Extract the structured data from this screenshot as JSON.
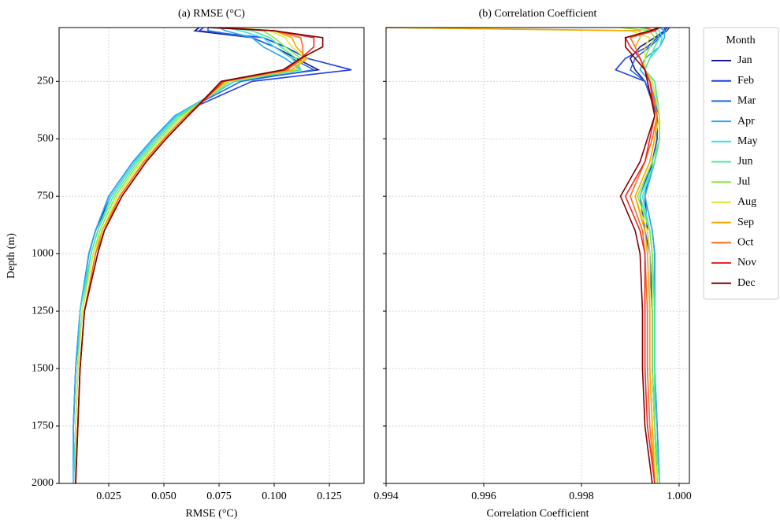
{
  "chart_data": [
    {
      "type": "line",
      "title": "(a) RMSE (°C)",
      "x_label": "RMSE (°C)",
      "y_label": "Depth (m)",
      "legend_title": "Month",
      "grid": true,
      "xlim": [
        0.0025,
        0.1407
      ],
      "ylim": [
        2000,
        16
      ],
      "xticks": [
        0.025,
        {
          "value": 0.05,
          "label": "0.050"
        },
        0.075,
        {
          "value": 0.1,
          "label": "0.100"
        },
        0.125
      ],
      "yticks": [
        250,
        500,
        750,
        1000,
        1250,
        1500,
        1750,
        2000
      ],
      "y": [
        16,
        30,
        60,
        100,
        150,
        200,
        250,
        400,
        500,
        600,
        750,
        900,
        1000,
        1250,
        1500,
        1750,
        2000
      ],
      "series": [
        {
          "name": "Jan",
          "color": "#1a1a8c",
          "values": [
            0.066,
            0.064,
            0.09,
            0.1,
            0.11,
            0.12,
            0.082,
            0.056,
            0.046,
            0.037,
            0.026,
            0.019,
            0.016,
            0.012,
            0.011,
            0.01,
            0.009
          ]
        },
        {
          "name": "Feb",
          "color": "#1f3fe0",
          "values": [
            0.068,
            0.066,
            0.095,
            0.105,
            0.115,
            0.135,
            0.09,
            0.055,
            0.045,
            0.036,
            0.025,
            0.019,
            0.016,
            0.012,
            0.01,
            0.009,
            0.009
          ]
        },
        {
          "name": "Mar",
          "color": "#1e6ae8",
          "values": [
            0.07,
            0.07,
            0.09,
            0.1,
            0.108,
            0.118,
            0.085,
            0.055,
            0.045,
            0.036,
            0.025,
            0.019,
            0.016,
            0.012,
            0.01,
            0.009,
            0.009
          ]
        },
        {
          "name": "Apr",
          "color": "#2ba8f0",
          "values": [
            0.075,
            0.078,
            0.09,
            0.095,
            0.105,
            0.112,
            0.082,
            0.055,
            0.045,
            0.036,
            0.025,
            0.019,
            0.016,
            0.012,
            0.01,
            0.009,
            0.009
          ]
        },
        {
          "name": "May",
          "color": "#3fe0e0",
          "values": [
            0.078,
            0.085,
            0.095,
            0.1,
            0.108,
            0.112,
            0.082,
            0.056,
            0.046,
            0.037,
            0.026,
            0.02,
            0.017,
            0.012,
            0.011,
            0.01,
            0.009
          ]
        },
        {
          "name": "Jun",
          "color": "#4be89a",
          "values": [
            0.08,
            0.09,
            0.098,
            0.103,
            0.11,
            0.112,
            0.08,
            0.057,
            0.047,
            0.038,
            0.027,
            0.02,
            0.017,
            0.013,
            0.011,
            0.01,
            0.01
          ]
        },
        {
          "name": "Jul",
          "color": "#8ae84b",
          "values": [
            0.082,
            0.095,
            0.1,
            0.105,
            0.112,
            0.11,
            0.08,
            0.058,
            0.048,
            0.039,
            0.028,
            0.021,
            0.018,
            0.013,
            0.011,
            0.01,
            0.01
          ]
        },
        {
          "name": "Aug",
          "color": "#e0e83a",
          "values": [
            0.08,
            0.098,
            0.105,
            0.108,
            0.114,
            0.108,
            0.079,
            0.059,
            0.049,
            0.04,
            0.029,
            0.022,
            0.018,
            0.013,
            0.011,
            0.01,
            0.01
          ]
        },
        {
          "name": "Sep",
          "color": "#f5a800",
          "values": [
            0.078,
            0.1,
            0.108,
            0.11,
            0.115,
            0.108,
            0.078,
            0.06,
            0.05,
            0.041,
            0.03,
            0.022,
            0.019,
            0.014,
            0.012,
            0.011,
            0.01
          ]
        },
        {
          "name": "Oct",
          "color": "#ff6a1a",
          "values": [
            0.075,
            0.1,
            0.112,
            0.113,
            0.113,
            0.106,
            0.077,
            0.06,
            0.05,
            0.041,
            0.03,
            0.023,
            0.019,
            0.014,
            0.012,
            0.011,
            0.01
          ]
        },
        {
          "name": "Nov",
          "color": "#e82a2a",
          "values": [
            0.072,
            0.1,
            0.118,
            0.118,
            0.112,
            0.105,
            0.077,
            0.061,
            0.051,
            0.042,
            0.031,
            0.023,
            0.02,
            0.014,
            0.012,
            0.011,
            0.01
          ]
        },
        {
          "name": "Dec",
          "color": "#800000",
          "values": [
            0.07,
            0.1,
            0.122,
            0.122,
            0.112,
            0.104,
            0.076,
            0.061,
            0.051,
            0.042,
            0.031,
            0.023,
            0.02,
            0.014,
            0.012,
            0.011,
            0.01
          ]
        }
      ]
    },
    {
      "type": "line",
      "title": "(b) Correlation Coefficient",
      "x_label": "Correlation Coefficient",
      "grid": true,
      "xlim": [
        0.994,
        1.00021
      ],
      "ylim": [
        2000,
        16
      ],
      "xticks": [
        0.994,
        0.996,
        0.998,
        {
          "value": 1.0,
          "label": "1.000"
        }
      ],
      "yticks": [
        250,
        500,
        750,
        1000,
        1250,
        1500,
        1750,
        2000
      ],
      "y": [
        16,
        30,
        60,
        100,
        150,
        200,
        250,
        400,
        500,
        600,
        750,
        900,
        1000,
        1250,
        1500,
        1750,
        2000
      ],
      "series": [
        {
          "color": "#1a1a8c",
          "values": [
            0.99975,
            0.9997,
            0.9995,
            0.9992,
            0.999,
            0.9991,
            0.9993,
            0.99955,
            0.99955,
            0.99945,
            0.9993,
            0.99935,
            0.9994,
            0.99945,
            0.99945,
            0.9995,
            0.99955
          ]
        },
        {
          "color": "#1f3fe0",
          "values": [
            0.9998,
            0.99975,
            0.99955,
            0.99935,
            0.9989,
            0.9987,
            0.9993,
            0.99955,
            0.99955,
            0.99945,
            0.9992,
            0.9993,
            0.9994,
            0.99945,
            0.99945,
            0.9995,
            0.99955
          ]
        },
        {
          "color": "#1e6ae8",
          "values": [
            0.9997,
            0.9997,
            0.9996,
            0.9994,
            0.9991,
            0.999,
            0.9993,
            0.9996,
            0.9996,
            0.9995,
            0.9993,
            0.99945,
            0.9995,
            0.9995,
            0.9995,
            0.99955,
            0.9996
          ]
        },
        {
          "color": "#2ba8f0",
          "values": [
            0.9996,
            0.9997,
            0.9997,
            0.9996,
            0.9993,
            0.9992,
            0.9994,
            0.9996,
            0.9996,
            0.9995,
            0.9993,
            0.99945,
            0.9995,
            0.9995,
            0.9995,
            0.99955,
            0.9996
          ]
        },
        {
          "color": "#3fe0e0",
          "values": [
            0.9995,
            0.9996,
            0.99965,
            0.9996,
            0.9994,
            0.9993,
            0.9995,
            0.9996,
            0.9996,
            0.9995,
            0.99925,
            0.9994,
            0.99945,
            0.9995,
            0.9995,
            0.9995,
            0.9996
          ]
        },
        {
          "color": "#4be89a",
          "values": [
            0.9992,
            0.9995,
            0.9996,
            0.9995,
            0.9994,
            0.9993,
            0.9995,
            0.9996,
            0.9996,
            0.9995,
            0.9992,
            0.9994,
            0.99945,
            0.9995,
            0.9995,
            0.9995,
            0.9996
          ]
        },
        {
          "color": "#8ae84b",
          "values": [
            0.9988,
            0.9994,
            0.9995,
            0.9994,
            0.9993,
            0.9993,
            0.99945,
            0.9996,
            0.9996,
            0.99945,
            0.99915,
            0.9994,
            0.99945,
            0.99945,
            0.99945,
            0.9995,
            0.99955
          ]
        },
        {
          "color": "#e0e83a",
          "values": [
            0.994,
            0.999,
            0.9994,
            0.9993,
            0.9993,
            0.9993,
            0.99945,
            0.9996,
            0.9995,
            0.9994,
            0.9991,
            0.99935,
            0.9994,
            0.9994,
            0.9994,
            0.99945,
            0.99955
          ]
        },
        {
          "color": "#f5a800",
          "values": [
            0.994,
            0.9992,
            0.9992,
            0.9991,
            0.9992,
            0.9993,
            0.9994,
            0.99955,
            0.9995,
            0.9994,
            0.9991,
            0.9993,
            0.99935,
            0.9994,
            0.9994,
            0.99945,
            0.9995
          ]
        },
        {
          "color": "#ff6a1a",
          "values": [
            0.9993,
            0.9995,
            0.999,
            0.9991,
            0.9992,
            0.9993,
            0.9994,
            0.99955,
            0.99945,
            0.9993,
            0.999,
            0.99925,
            0.9993,
            0.99935,
            0.99935,
            0.9994,
            0.9995
          ]
        },
        {
          "color": "#e82a2a",
          "values": [
            0.9996,
            0.9995,
            0.9989,
            0.999,
            0.9992,
            0.9993,
            0.9994,
            0.9995,
            0.9994,
            0.9993,
            0.9989,
            0.9992,
            0.9993,
            0.9993,
            0.9993,
            0.99935,
            0.9995
          ]
        },
        {
          "color": "#800000",
          "values": [
            0.9996,
            0.9994,
            0.9989,
            0.9989,
            0.9991,
            0.9993,
            0.99935,
            0.9995,
            0.99935,
            0.9992,
            0.9988,
            0.9991,
            0.9992,
            0.99925,
            0.99925,
            0.9993,
            0.99945
          ]
        }
      ]
    }
  ]
}
